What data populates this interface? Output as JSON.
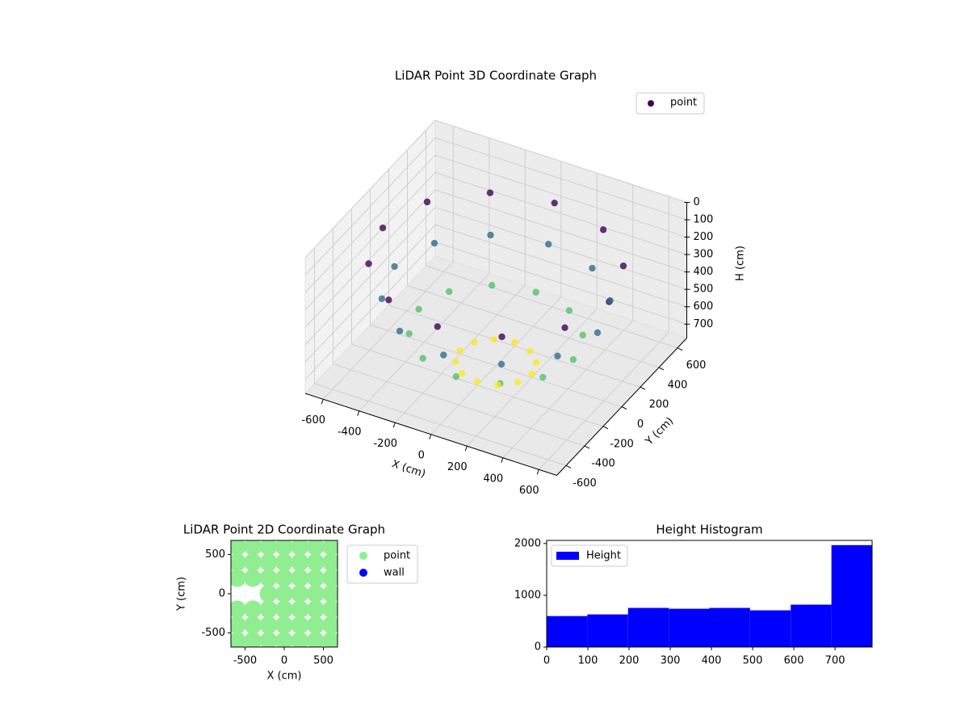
{
  "chart_data": [
    {
      "type": "scatter3d",
      "title": "LiDAR Point 3D Coordinate Graph",
      "xlabel": "X (cm)",
      "ylabel": "Y (cm)",
      "zlabel": "H (cm)",
      "colormap": "viridis",
      "legend": "upper right",
      "z_inverted": true,
      "xlim": [
        -700,
        700
      ],
      "ylim": [
        -700,
        700
      ],
      "zlim": [
        0,
        780
      ],
      "xticks": [
        -600,
        -400,
        -200,
        0,
        200,
        400,
        600
      ],
      "yticks": [
        -600,
        -400,
        -200,
        0,
        200,
        400,
        600
      ],
      "zticks": [
        0,
        100,
        200,
        300,
        400,
        500,
        600,
        700
      ],
      "series": [
        {
          "name": "point",
          "color": "#440154",
          "x": [
            630,
            546,
            315,
            0,
            -315,
            -546,
            -630,
            -546,
            -315,
            0,
            315,
            546,
            565,
            489,
            283,
            0,
            -283,
            -489,
            -565,
            -489,
            -283,
            0,
            283,
            489,
            430,
            372,
            215,
            0,
            -215,
            -372,
            -430,
            -372,
            -215,
            0,
            215,
            372,
            200,
            173,
            100,
            0,
            -100,
            -173,
            -200,
            -173,
            -100,
            0,
            100,
            173
          ],
          "y": [
            0,
            315,
            546,
            630,
            546,
            315,
            0,
            -315,
            -546,
            -630,
            -546,
            -315,
            0,
            283,
            489,
            565,
            489,
            283,
            0,
            -283,
            -489,
            -565,
            -489,
            -283,
            0,
            215,
            372,
            430,
            372,
            215,
            0,
            -215,
            -372,
            -430,
            -372,
            -215,
            0,
            100,
            173,
            200,
            173,
            100,
            0,
            -100,
            -173,
            -200,
            -173,
            -100
          ],
          "z": [
            200,
            200,
            200,
            200,
            200,
            200,
            200,
            200,
            200,
            200,
            200,
            200,
            400,
            400,
            400,
            400,
            400,
            400,
            400,
            400,
            400,
            400,
            400,
            400,
            600,
            600,
            600,
            600,
            600,
            600,
            600,
            600,
            600,
            600,
            600,
            600,
            760,
            760,
            760,
            760,
            760,
            760,
            760,
            760,
            760,
            760,
            760,
            760
          ]
        }
      ]
    },
    {
      "type": "scatter",
      "title": "LiDAR Point 2D Coordinate Graph",
      "xlabel": "X (cm)",
      "ylabel": "Y (cm)",
      "legend": "outside right",
      "xlim": [
        -680,
        680
      ],
      "ylim": [
        -680,
        680
      ],
      "xticks": [
        -500,
        0,
        500
      ],
      "yticks": [
        -500,
        0,
        500
      ],
      "series": [
        {
          "name": "point",
          "color": "#90ee90",
          "x": [
            -600,
            -400,
            -200,
            0,
            200,
            400,
            600,
            -600,
            -400,
            -200,
            0,
            200,
            400,
            600,
            -600,
            -400,
            -200,
            0,
            200,
            400,
            600,
            -200,
            0,
            200,
            400,
            600,
            -600,
            -400,
            -200,
            0,
            200,
            400,
            600,
            -600,
            -400,
            -200,
            0,
            200,
            400,
            600,
            -600,
            -400,
            -200,
            0,
            200,
            400,
            600
          ],
          "y": [
            600,
            600,
            600,
            600,
            600,
            600,
            600,
            400,
            400,
            400,
            400,
            400,
            400,
            400,
            200,
            200,
            200,
            200,
            200,
            200,
            200,
            0,
            0,
            0,
            0,
            0,
            -200,
            -200,
            -200,
            -200,
            -200,
            -200,
            -200,
            -400,
            -400,
            -400,
            -400,
            -400,
            -400,
            -400,
            -600,
            -600,
            -600,
            -600,
            -600,
            -600,
            -600
          ]
        },
        {
          "name": "wall",
          "color": "#0000ff",
          "x": [],
          "y": []
        }
      ]
    },
    {
      "type": "histogram",
      "title": "Height Histogram",
      "name": "Height",
      "color": "#0000ff",
      "legend": "upper left",
      "bins": [
        0,
        98.75,
        197.5,
        296.25,
        395,
        493.75,
        592.5,
        691.25,
        790
      ],
      "values": [
        598,
        630,
        756,
        740,
        756,
        709,
        819,
        1969
      ],
      "xlim": [
        0,
        790
      ],
      "ylim": [
        0,
        2060
      ],
      "xticks": [
        0,
        100,
        200,
        300,
        400,
        500,
        600,
        700
      ],
      "yticks": [
        0,
        1000,
        2000
      ]
    }
  ]
}
